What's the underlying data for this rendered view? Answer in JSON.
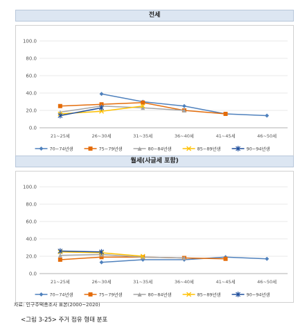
{
  "source_note": "자료: 인구주택총조사 표본(2000~2020)",
  "caption": "<그림 3-25> 주거 점유 형태 분포",
  "colors": {
    "s1": "#4f81bd",
    "s2": "#e46c0a",
    "s3": "#a5a5a5",
    "s4": "#ffc000",
    "s5": "#1f4e9c"
  },
  "chart_data": [
    {
      "type": "line",
      "title": "전세",
      "categories": [
        "21~25세",
        "26~30세",
        "31~35세",
        "36~40세",
        "41~45세",
        "46~50세"
      ],
      "yticks": [
        "100.0",
        "80.0",
        "60.0",
        "40.0",
        "20.0",
        "0.0"
      ],
      "ylim": [
        0,
        100
      ],
      "grid": true,
      "legend": "bottom",
      "series": [
        {
          "name": "70~74년생",
          "values": [
            null,
            39,
            30,
            25,
            16,
            14
          ]
        },
        {
          "name": "75~79년생",
          "values": [
            25,
            27,
            29,
            20,
            16,
            null
          ]
        },
        {
          "name": "80~84년생",
          "values": [
            18,
            25,
            23,
            20,
            null,
            null
          ]
        },
        {
          "name": "85~89년생",
          "values": [
            16,
            19,
            25,
            null,
            null,
            null
          ]
        },
        {
          "name": "90~94년생",
          "values": [
            14,
            23,
            null,
            null,
            null,
            null
          ]
        }
      ]
    },
    {
      "type": "line",
      "title": "월세(사글세 포함)",
      "categories": [
        "21~25세",
        "26~30세",
        "31~35세",
        "36~40세",
        "41~45세",
        "46~50세"
      ],
      "yticks": [
        "100.0",
        "80.0",
        "60.0",
        "40.0",
        "20.0",
        "0.0"
      ],
      "ylim": [
        0,
        100
      ],
      "grid": true,
      "legend": "bottom",
      "series": [
        {
          "name": "70~74년생",
          "values": [
            null,
            13,
            16,
            16,
            19,
            17
          ]
        },
        {
          "name": "75~79년생",
          "values": [
            16,
            19,
            19,
            18,
            17,
            null
          ]
        },
        {
          "name": "80~84년생",
          "values": [
            21,
            22,
            19,
            18,
            null,
            null
          ]
        },
        {
          "name": "85~89년생",
          "values": [
            25,
            24,
            20,
            null,
            null,
            null
          ]
        },
        {
          "name": "90~94년생",
          "values": [
            26,
            25,
            null,
            null,
            null,
            null
          ]
        }
      ]
    }
  ]
}
